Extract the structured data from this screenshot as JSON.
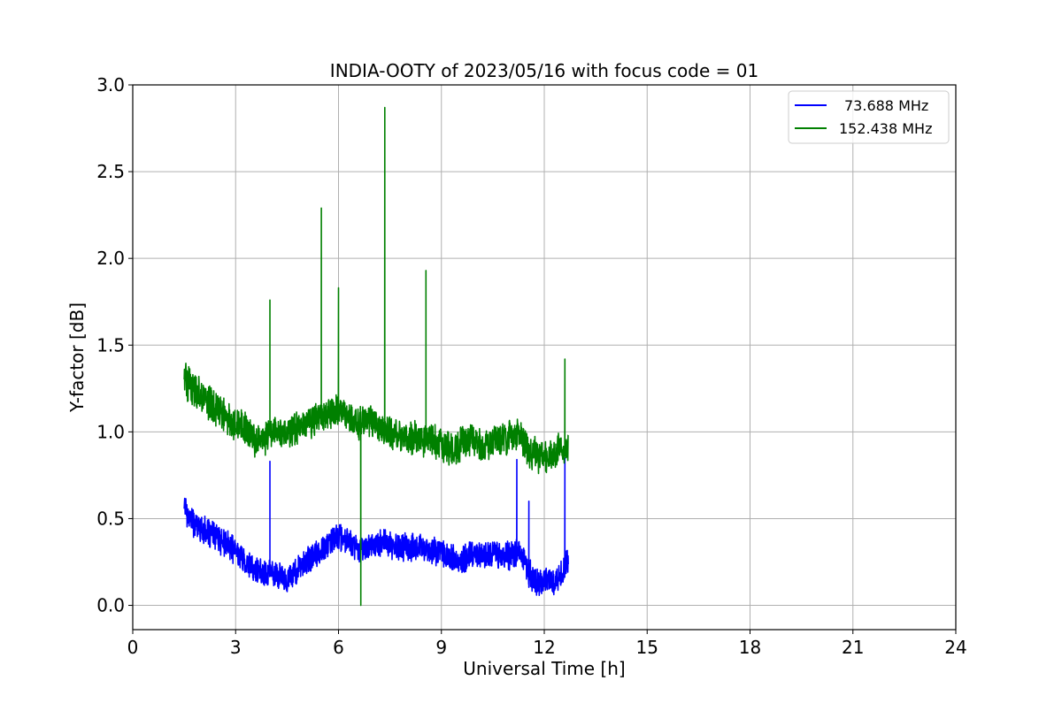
{
  "chart_data": {
    "type": "line",
    "title": "INDIA-OOTY of 2023/05/16 with focus code = 01",
    "xlabel": "Universal Time [h]",
    "ylabel": "Y-factor [dB]",
    "xlim": [
      0,
      24
    ],
    "ylim": [
      -0.14,
      3.0
    ],
    "xticks": [
      0,
      3,
      6,
      9,
      12,
      15,
      18,
      21,
      24
    ],
    "xtick_labels": [
      "0",
      "3",
      "6",
      "9",
      "12",
      "15",
      "18",
      "21",
      "24"
    ],
    "yticks": [
      0.0,
      0.5,
      1.0,
      1.5,
      2.0,
      2.5,
      3.0
    ],
    "ytick_labels": [
      "0.0",
      "0.5",
      "1.0",
      "1.5",
      "2.0",
      "2.5",
      "3.0"
    ],
    "grid": true,
    "legend_position": "upper-right",
    "series": [
      {
        "name": "73.688 MHz",
        "color": "#0000ff",
        "x": [
          1.5,
          1.6,
          1.8,
          2.0,
          2.3,
          2.6,
          2.9,
          3.2,
          3.5,
          3.8,
          4.0,
          4.2,
          4.5,
          4.8,
          5.1,
          5.4,
          5.7,
          6.0,
          6.3,
          6.6,
          6.9,
          7.2,
          7.5,
          7.8,
          8.1,
          8.4,
          8.7,
          9.0,
          9.3,
          9.6,
          9.9,
          10.2,
          10.5,
          10.8,
          11.1,
          11.3,
          11.5,
          11.7,
          11.9,
          12.1,
          12.3,
          12.5,
          12.7
        ],
        "y": [
          0.6,
          0.52,
          0.47,
          0.44,
          0.41,
          0.37,
          0.33,
          0.27,
          0.21,
          0.18,
          0.2,
          0.17,
          0.15,
          0.2,
          0.26,
          0.3,
          0.35,
          0.4,
          0.37,
          0.33,
          0.34,
          0.36,
          0.35,
          0.33,
          0.34,
          0.33,
          0.32,
          0.31,
          0.27,
          0.26,
          0.3,
          0.29,
          0.31,
          0.28,
          0.3,
          0.32,
          0.2,
          0.14,
          0.12,
          0.16,
          0.13,
          0.18,
          0.28
        ]
      },
      {
        "name": "152.438 MHz",
        "color": "#008000",
        "x": [
          1.5,
          1.6,
          1.8,
          2.0,
          2.3,
          2.6,
          2.9,
          3.2,
          3.5,
          3.8,
          4.0,
          4.2,
          4.5,
          4.8,
          5.1,
          5.4,
          5.7,
          6.0,
          6.3,
          6.6,
          6.9,
          7.2,
          7.5,
          7.8,
          8.1,
          8.4,
          8.7,
          9.0,
          9.3,
          9.6,
          9.9,
          10.2,
          10.5,
          10.8,
          11.1,
          11.3,
          11.5,
          11.7,
          11.9,
          12.1,
          12.3,
          12.5,
          12.7
        ],
        "y": [
          1.35,
          1.28,
          1.24,
          1.21,
          1.16,
          1.1,
          1.06,
          1.04,
          0.96,
          0.95,
          1.0,
          1.01,
          0.99,
          1.03,
          1.06,
          1.08,
          1.1,
          1.14,
          1.07,
          1.05,
          1.07,
          1.02,
          1.0,
          0.98,
          0.96,
          0.96,
          0.94,
          0.93,
          0.9,
          0.94,
          0.97,
          0.9,
          0.96,
          0.95,
          0.99,
          0.97,
          0.9,
          0.88,
          0.86,
          0.87,
          0.88,
          0.9,
          0.9
        ]
      }
    ]
  }
}
